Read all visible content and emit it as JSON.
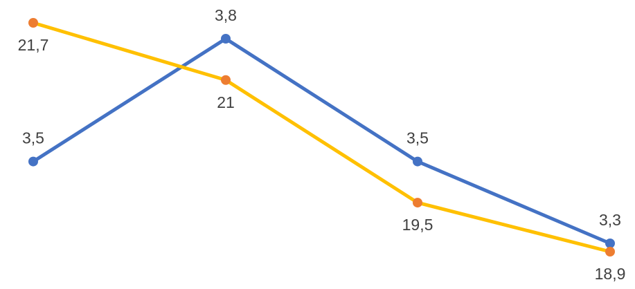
{
  "chart_data": {
    "type": "line",
    "title": "",
    "xlabel": "",
    "ylabel": "",
    "categories": [
      "",
      "",
      "",
      ""
    ],
    "grid": false,
    "legend": "none",
    "series": [
      {
        "values": [
          3.5,
          3.8,
          3.5,
          3.3
        ],
        "labels": [
          "3,5",
          "3,8",
          "3,5",
          "3,3"
        ],
        "line_color": "#4472C4",
        "marker_color": "#4472C4",
        "label_position": "above",
        "ylim": [
          3.3,
          3.8
        ]
      },
      {
        "values": [
          21.7,
          21,
          19.5,
          18.9
        ],
        "labels": [
          "21,7",
          "21",
          "19,5",
          "18,9"
        ],
        "line_color": "#FFC000",
        "marker_color": "#ED7D31",
        "label_position": "below",
        "ylim": [
          18.9,
          21.7
        ]
      }
    ]
  }
}
